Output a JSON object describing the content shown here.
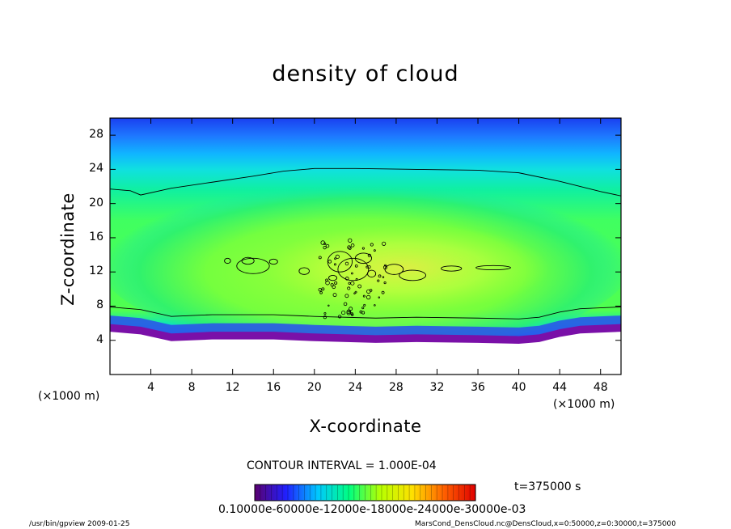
{
  "chart_data": {
    "type": "heatmap",
    "title": "density of cloud",
    "xlabel": "X-coordinate",
    "ylabel": "Z-coordinate",
    "x_unit": "(×1000 m)",
    "z_unit": "(×1000 m)",
    "xlim": [
      0,
      50
    ],
    "ylim": [
      0,
      30
    ],
    "x_ticks": [
      4,
      8,
      12,
      16,
      20,
      24,
      28,
      32,
      36,
      40,
      44,
      48
    ],
    "y_ticks": [
      4,
      8,
      12,
      16,
      20,
      24,
      28
    ],
    "contour_interval_text": "CONTOUR INTERVAL = 1.000E-04",
    "time_text": "t=375000 s",
    "colorbar_labels_text": "0.10000e-60000e-12000e-18000e-24000e-30000e-03",
    "colorbar_range": [
      0.0,
      0.0003
    ],
    "colorscale": [
      "#5a0070",
      "#2020ff",
      "#00c8ff",
      "#00ff80",
      "#b8ff00",
      "#ffe000",
      "#ff6000",
      "#e00000"
    ],
    "field_description_values": {
      "cloud_top_contour_z": [
        [
          0,
          21.7
        ],
        [
          2,
          21.5
        ],
        [
          3,
          21.0
        ],
        [
          6,
          21.8
        ],
        [
          10,
          22.5
        ],
        [
          14,
          23.2
        ],
        [
          17,
          23.8
        ],
        [
          20,
          24.1
        ],
        [
          24,
          24.1
        ],
        [
          30,
          24.0
        ],
        [
          36,
          23.9
        ],
        [
          40,
          23.6
        ],
        [
          44,
          22.6
        ],
        [
          48,
          21.4
        ],
        [
          50,
          20.9
        ]
      ],
      "cloud_base_contour_z": [
        [
          0,
          7.9
        ],
        [
          3,
          7.6
        ],
        [
          6,
          6.8
        ],
        [
          10,
          7.0
        ],
        [
          16,
          7.0
        ],
        [
          20,
          6.8
        ],
        [
          26,
          6.6
        ],
        [
          30,
          6.7
        ],
        [
          36,
          6.6
        ],
        [
          40,
          6.5
        ],
        [
          42,
          6.7
        ],
        [
          44,
          7.3
        ],
        [
          46,
          7.7
        ],
        [
          50,
          7.9
        ]
      ]
    }
  },
  "footer": {
    "left": "/usr/bin/gpview   2009-01-25",
    "right": "MarsCond_DensCloud.nc@DensCloud,x=0:50000,z=0:30000,t=375000"
  }
}
